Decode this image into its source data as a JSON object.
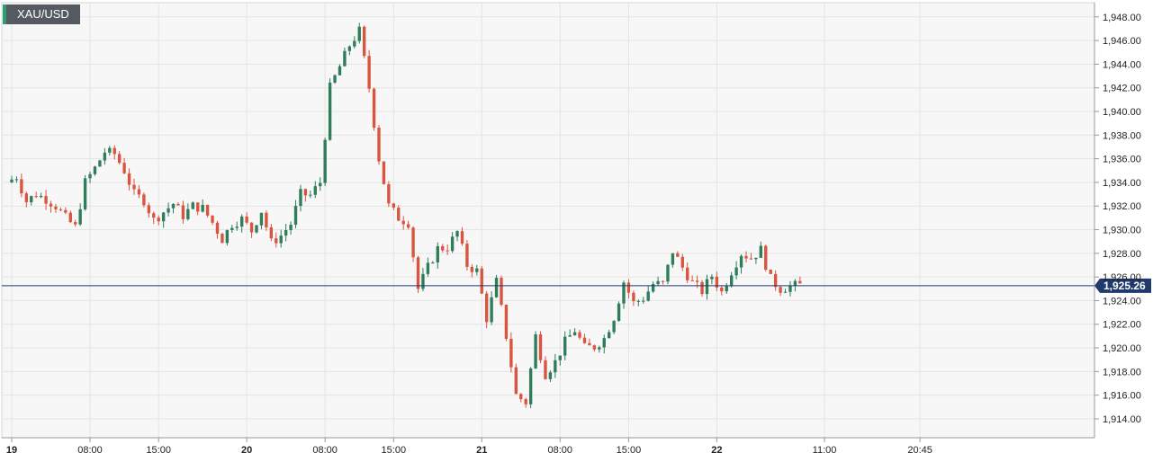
{
  "symbol": "XAU/USD",
  "colors": {
    "up": "#2e7d5b",
    "down": "#d9553f",
    "grid": "#e4e4e4",
    "plot_bg": "#f7f7f7",
    "price_line": "#1f3a6b"
  },
  "chart_data": {
    "type": "candlestick",
    "title": "",
    "xlabel": "",
    "ylabel": "",
    "ylim": [
      1912.4,
      1949.2
    ],
    "grid": true,
    "legend": "none",
    "yticks": [
      "1,914.00",
      "1,916.00",
      "1,918.00",
      "1,920.00",
      "1,922.00",
      "1,924.00",
      "1,926.00",
      "1,928.00",
      "1,930.00",
      "1,932.00",
      "1,934.00",
      "1,936.00",
      "1,938.00",
      "1,940.00",
      "1,942.00",
      "1,944.00",
      "1,946.00",
      "1,948.00"
    ],
    "ytick_values": [
      1914,
      1916,
      1918,
      1920,
      1922,
      1924,
      1926,
      1928,
      1930,
      1932,
      1934,
      1936,
      1938,
      1940,
      1942,
      1944,
      1946,
      1948
    ],
    "xticks": [
      {
        "label": "19",
        "day": true,
        "hour": 0
      },
      {
        "label": "08:00",
        "day": false,
        "hour": 8
      },
      {
        "label": "15:00",
        "day": false,
        "hour": 15
      },
      {
        "label": "20",
        "day": true,
        "hour": 24
      },
      {
        "label": "08:00",
        "day": false,
        "hour": 32
      },
      {
        "label": "15:00",
        "day": false,
        "hour": 39
      },
      {
        "label": "21",
        "day": true,
        "hour": 48
      },
      {
        "label": "08:00",
        "day": false,
        "hour": 56
      },
      {
        "label": "15:00",
        "day": false,
        "hour": 63
      },
      {
        "label": "22",
        "day": true,
        "hour": 72
      },
      {
        "label": "11:00",
        "day": false,
        "hour": 83
      },
      {
        "label": "20:45",
        "day": false,
        "hour": 92.75
      }
    ],
    "current_price": 1925.26,
    "current_price_label": "1,925.26",
    "anchors": [
      [
        0,
        1934.0
      ],
      [
        1,
        1934.5
      ],
      [
        2,
        1932.4
      ],
      [
        3,
        1933.0
      ],
      [
        4,
        1932.6
      ],
      [
        5,
        1932.0
      ],
      [
        6,
        1931.0
      ],
      [
        7,
        1930.2
      ],
      [
        8,
        1934.0
      ],
      [
        9,
        1935.2
      ],
      [
        10,
        1936.6
      ],
      [
        11,
        1936.4
      ],
      [
        12,
        1935.0
      ],
      [
        13,
        1933.0
      ],
      [
        14,
        1932.5
      ],
      [
        15,
        1930.8
      ],
      [
        16,
        1931.5
      ],
      [
        17,
        1932.2
      ],
      [
        18,
        1931.2
      ],
      [
        19,
        1932.0
      ],
      [
        20,
        1931.8
      ],
      [
        21,
        1930.6
      ],
      [
        22,
        1929.2
      ],
      [
        23,
        1930.5
      ],
      [
        24,
        1930.9
      ],
      [
        25,
        1929.9
      ],
      [
        26,
        1931.6
      ],
      [
        27,
        1928.9
      ],
      [
        28,
        1929.5
      ],
      [
        29,
        1930.5
      ],
      [
        30,
        1933.0
      ],
      [
        31,
        1932.9
      ],
      [
        32,
        1934.0
      ],
      [
        33,
        1942.0
      ],
      [
        34,
        1943.8
      ],
      [
        35,
        1945.6
      ],
      [
        36,
        1946.8
      ],
      [
        37,
        1942.0
      ],
      [
        38,
        1936.0
      ],
      [
        39,
        1932.0
      ],
      [
        40,
        1931.0
      ],
      [
        41,
        1930.6
      ],
      [
        42,
        1925.0
      ],
      [
        43,
        1926.8
      ],
      [
        44,
        1928.4
      ],
      [
        45,
        1928.5
      ],
      [
        46,
        1929.8
      ],
      [
        47,
        1927.0
      ],
      [
        48,
        1926.5
      ],
      [
        49,
        1922.5
      ],
      [
        50,
        1925.6
      ],
      [
        51,
        1921.0
      ],
      [
        52,
        1916.0
      ],
      [
        53,
        1915.4
      ],
      [
        54,
        1921.0
      ],
      [
        55,
        1917.8
      ],
      [
        56,
        1918.8
      ],
      [
        57,
        1920.5
      ],
      [
        58,
        1921.5
      ],
      [
        59,
        1920.0
      ],
      [
        60,
        1920.1
      ],
      [
        61,
        1920.8
      ],
      [
        62,
        1922.6
      ],
      [
        63,
        1925.6
      ],
      [
        64,
        1923.8
      ],
      [
        65,
        1924.2
      ],
      [
        66,
        1925.4
      ],
      [
        67,
        1925.4
      ],
      [
        68,
        1928.2
      ],
      [
        69,
        1926.8
      ],
      [
        70,
        1925.5
      ],
      [
        71,
        1924.8
      ],
      [
        72,
        1926.1
      ],
      [
        73,
        1924.7
      ],
      [
        74,
        1926.5
      ],
      [
        75,
        1928.0
      ],
      [
        76,
        1927.6
      ],
      [
        77,
        1928.3
      ],
      [
        78,
        1925.8
      ],
      [
        79,
        1925.0
      ],
      [
        80,
        1925.2
      ],
      [
        81,
        1925.3
      ]
    ]
  }
}
